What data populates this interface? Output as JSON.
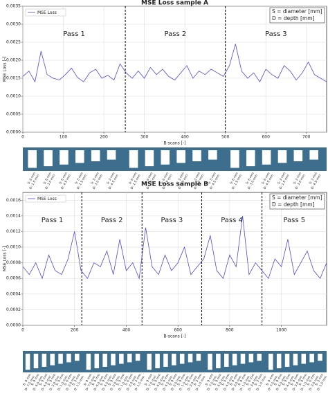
{
  "chart_data": [
    {
      "type": "line",
      "title": "MSE Loss sample A",
      "x_label": "B-scans [-]",
      "y_label": "MSE Loss [-]",
      "xlim": [
        0,
        750
      ],
      "xticks": [
        0,
        100,
        200,
        300,
        400,
        500,
        600,
        700
      ],
      "ylim": [
        0,
        0.0035
      ],
      "yticks": [
        {
          "value": 0,
          "label": "0.0000"
        },
        {
          "value": 0.0005,
          "label": "0.0005"
        },
        {
          "value": 0.001,
          "label": "0.0010"
        },
        {
          "value": 0.0015,
          "label": "0.0015"
        },
        {
          "value": 0.002,
          "label": "0.0020"
        },
        {
          "value": 0.0025,
          "label": "0.0025"
        },
        {
          "value": 0.003,
          "label": "0.0030"
        },
        {
          "value": 0.0035,
          "label": "0.0035"
        }
      ],
      "grid": true,
      "legend": "upper left",
      "annotation": [
        "S = diameter [mm]",
        "D = depth [mm]"
      ],
      "vlines": [
        253,
        500
      ],
      "pass_labels": [
        "Pass 1",
        "Pass 2",
        "Pass 3"
      ],
      "x": [
        0,
        15,
        30,
        45,
        60,
        75,
        90,
        105,
        120,
        135,
        150,
        165,
        180,
        195,
        210,
        225,
        240,
        255,
        270,
        285,
        300,
        315,
        330,
        345,
        360,
        375,
        390,
        405,
        420,
        435,
        450,
        465,
        480,
        495,
        510,
        525,
        540,
        555,
        570,
        585,
        600,
        615,
        630,
        645,
        660,
        675,
        690,
        705,
        720,
        735,
        750
      ],
      "series": [
        {
          "name": "MSE Loss",
          "color": "#4a4ad8",
          "values": [
            0.00155,
            0.0017,
            0.0014,
            0.00225,
            0.0016,
            0.0015,
            0.00145,
            0.0016,
            0.00178,
            0.00152,
            0.0014,
            0.00165,
            0.00175,
            0.0015,
            0.00158,
            0.00145,
            0.0019,
            0.00165,
            0.0015,
            0.0017,
            0.0015,
            0.0018,
            0.0016,
            0.00175,
            0.00155,
            0.00145,
            0.00165,
            0.00185,
            0.0015,
            0.0017,
            0.0016,
            0.00175,
            0.00165,
            0.00155,
            0.00185,
            0.00245,
            0.0017,
            0.0015,
            0.00165,
            0.0014,
            0.00175,
            0.0016,
            0.0015,
            0.00185,
            0.0017,
            0.00145,
            0.00165,
            0.00195,
            0.0016,
            0.0015,
            0.0014
          ]
        }
      ]
    },
    {
      "type": "line",
      "title": "MSE Loss sample B",
      "x_label": "B-scans [-]",
      "y_label": "MSE Loss [-]",
      "xlim": [
        0,
        1175
      ],
      "xticks": [
        0,
        200,
        400,
        600,
        800,
        1000
      ],
      "ylim": [
        0,
        0.0017
      ],
      "yticks": [
        {
          "value": 0,
          "label": "0.0000"
        },
        {
          "value": 0.0002,
          "label": "0.0002"
        },
        {
          "value": 0.0004,
          "label": "0.0004"
        },
        {
          "value": 0.0006,
          "label": "0.0006"
        },
        {
          "value": 0.0008,
          "label": "0.0008"
        },
        {
          "value": 0.001,
          "label": "0.0010"
        },
        {
          "value": 0.0012,
          "label": "0.0012"
        },
        {
          "value": 0.0014,
          "label": "0.0014"
        },
        {
          "value": 0.0016,
          "label": "0.0016"
        }
      ],
      "grid": true,
      "legend": "upper left",
      "annotation": [
        "S = diameter [mm]",
        "D = depth [mm]"
      ],
      "vlines": [
        228,
        461,
        692,
        925
      ],
      "pass_labels": [
        "Pass 1",
        "Pass 2",
        "Pass 3",
        "Pass 4",
        "Pass 5"
      ],
      "x": [
        0,
        25,
        50,
        75,
        100,
        125,
        150,
        175,
        200,
        225,
        250,
        275,
        300,
        325,
        350,
        375,
        400,
        425,
        450,
        475,
        500,
        525,
        550,
        575,
        600,
        625,
        650,
        675,
        700,
        725,
        750,
        775,
        800,
        825,
        850,
        875,
        900,
        925,
        950,
        975,
        1000,
        1025,
        1050,
        1075,
        1100,
        1125,
        1150,
        1175
      ],
      "series": [
        {
          "name": "MSE Loss",
          "color": "#4a4ad8",
          "values": [
            0.00075,
            0.00065,
            0.0008,
            0.0006,
            0.0009,
            0.0007,
            0.00065,
            0.00085,
            0.0012,
            0.0007,
            0.0006,
            0.0008,
            0.00075,
            0.00095,
            0.00065,
            0.0011,
            0.0007,
            0.0008,
            0.0006,
            0.00125,
            0.00075,
            0.00065,
            0.0009,
            0.0007,
            0.0008,
            0.001,
            0.00065,
            0.00075,
            0.00085,
            0.00115,
            0.0007,
            0.0006,
            0.0009,
            0.00075,
            0.0014,
            0.00065,
            0.0008,
            0.0007,
            0.0006,
            0.00085,
            0.00075,
            0.0011,
            0.00065,
            0.0008,
            0.00095,
            0.0007,
            0.0006,
            0.0008
          ]
        }
      ]
    }
  ],
  "diagrams": [
    {
      "passes": 3,
      "holes": [
        {
          "s": "S: 6 mm",
          "d": "D: 1.5 mm"
        },
        {
          "s": "S: 6 mm",
          "d": "D: 3.0 mm"
        },
        {
          "s": "S: 6 mm",
          "d": "D: 4.5 mm"
        },
        {
          "s": "S: 3 mm",
          "d": "D: 1.5 mm"
        },
        {
          "s": "S: 3 mm",
          "d": "D: 3.0 mm"
        },
        {
          "s": "S: 3 mm",
          "d": "D: 4.5 mm"
        },
        {
          "s": "S: 6 mm",
          "d": "D: 1.5 mm"
        },
        {
          "s": "S: 6 mm",
          "d": "D: 3.0 mm"
        },
        {
          "s": "S: 6 mm",
          "d": "D: 4.5 mm"
        },
        {
          "s": "S: 3 mm",
          "d": "D: 1.5 mm"
        },
        {
          "s": "S: 3 mm",
          "d": "D: 3.0 mm"
        },
        {
          "s": "S: 3 mm",
          "d": "D: 4.5 mm"
        },
        {
          "s": "S: 6 mm",
          "d": "D: 1.5 mm"
        },
        {
          "s": "S: 6 mm",
          "d": "D: 3.0 mm"
        },
        {
          "s": "S: 6 mm",
          "d": "D: 4.5 mm"
        },
        {
          "s": "S: 3 mm",
          "d": "D: 1.5 mm"
        },
        {
          "s": "S: 3 mm",
          "d": "D: 3.0 mm"
        },
        {
          "s": "S: 3 mm",
          "d": "D: 4.5 mm"
        }
      ]
    },
    {
      "passes": 5,
      "holes": [
        {
          "s": "S: 9 mm",
          "d": "D: 7.5 mm"
        },
        {
          "s": "S: 9 mm",
          "d": "D: 6.0 mm"
        },
        {
          "s": "S: 9 mm",
          "d": "D: 4.5 mm"
        },
        {
          "s": "S: 9 mm",
          "d": "D: 3.0 mm"
        },
        {
          "s": "S: 9 mm",
          "d": "D: 1.5 mm"
        },
        {
          "s": "S: 6 mm",
          "d": "D: 3.0 mm"
        },
        {
          "s": "S: 3 mm",
          "d": "D: 1.5 mm"
        },
        {
          "s": "S: 9 mm",
          "d": "D: 7.5 mm"
        },
        {
          "s": "S: 9 mm",
          "d": "D: 6.0 mm"
        },
        {
          "s": "S: 9 mm",
          "d": "D: 4.5 mm"
        },
        {
          "s": "S: 9 mm",
          "d": "D: 3.0 mm"
        },
        {
          "s": "S: 9 mm",
          "d": "D: 1.5 mm"
        },
        {
          "s": "S: 6 mm",
          "d": "D: 3.0 mm"
        },
        {
          "s": "S: 3 mm",
          "d": "D: 1.5 mm"
        },
        {
          "s": "S: 9 mm",
          "d": "D: 7.5 mm"
        },
        {
          "s": "S: 9 mm",
          "d": "D: 6.0 mm"
        },
        {
          "s": "S: 9 mm",
          "d": "D: 4.5 mm"
        },
        {
          "s": "S: 9 mm",
          "d": "D: 3.0 mm"
        },
        {
          "s": "S: 9 mm",
          "d": "D: 1.5 mm"
        },
        {
          "s": "S: 6 mm",
          "d": "D: 3.0 mm"
        },
        {
          "s": "S: 3 mm",
          "d": "D: 1.5 mm"
        },
        {
          "s": "S: 9 mm",
          "d": "D: 7.5 mm"
        },
        {
          "s": "S: 9 mm",
          "d": "D: 6.0 mm"
        },
        {
          "s": "S: 9 mm",
          "d": "D: 4.5 mm"
        },
        {
          "s": "S: 9 mm",
          "d": "D: 3.0 mm"
        },
        {
          "s": "S: 9 mm",
          "d": "D: 1.5 mm"
        },
        {
          "s": "S: 6 mm",
          "d": "D: 3.0 mm"
        },
        {
          "s": "S: 3 mm",
          "d": "D: 1.5 mm"
        },
        {
          "s": "S: 9 mm",
          "d": "D: 7.5 mm"
        },
        {
          "s": "S: 9 mm",
          "d": "D: 6.0 mm"
        },
        {
          "s": "S: 9 mm",
          "d": "D: 4.5 mm"
        },
        {
          "s": "S: 9 mm",
          "d": "D: 3.0 mm"
        },
        {
          "s": "S: 9 mm",
          "d": "D: 1.5 mm"
        },
        {
          "s": "S: 6 mm",
          "d": "D: 3.0 mm"
        },
        {
          "s": "S: 3 mm",
          "d": "D: 1.5 mm"
        }
      ]
    }
  ]
}
